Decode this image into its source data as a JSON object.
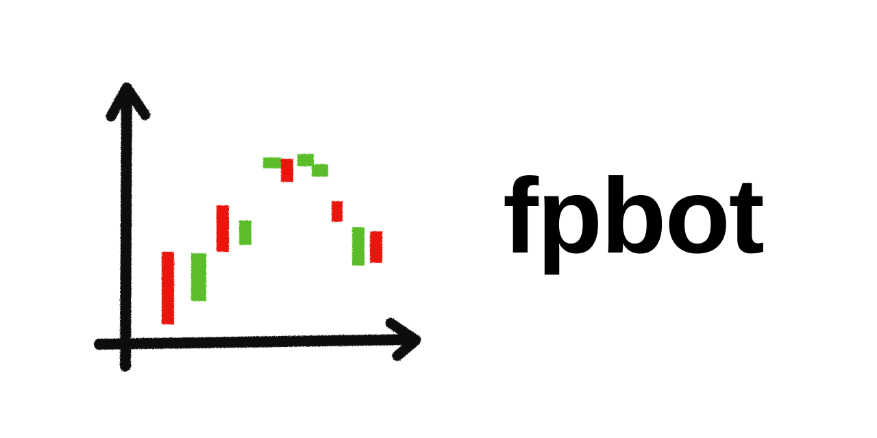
{
  "brand": {
    "name": "fpbot"
  },
  "logo": {
    "description_icon": "hand-drawn-candlestick-chart-icon",
    "axis_color": "#111111",
    "up_color": "#5bbd2b",
    "down_color": "#e8170f"
  }
}
